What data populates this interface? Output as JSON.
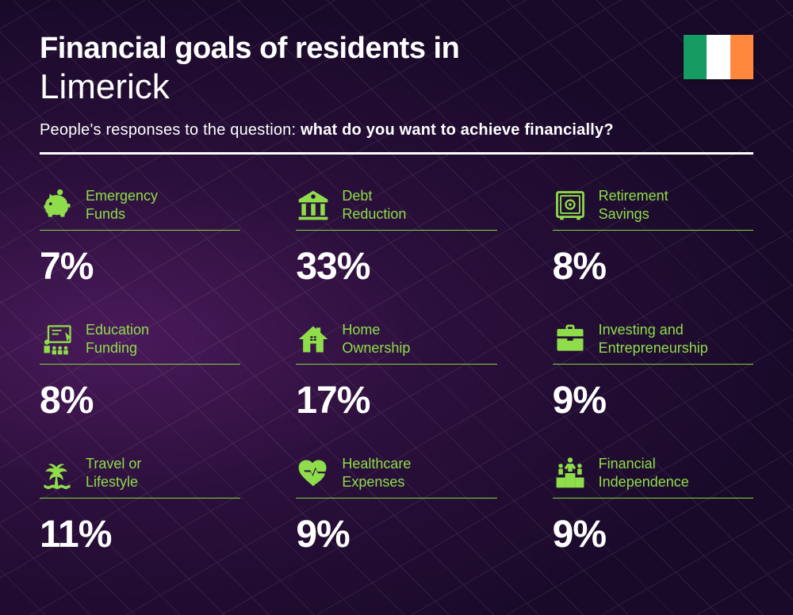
{
  "header": {
    "title_prefix": "Financial goals of residents in",
    "location": "Limerick",
    "subtitle_lead": "People's responses to the question: ",
    "subtitle_bold": "what do you want to achieve financially?"
  },
  "flag": {
    "stripes": [
      "#169b62",
      "#ffffff",
      "#ff883e"
    ]
  },
  "styling": {
    "accent_color": "#8fdd4a",
    "underline_color": "#7fd93b",
    "text_color": "#ffffff",
    "background_gradient": [
      "#4a1a5a",
      "#2a0f3a",
      "#1a0a2a"
    ],
    "title_bold_fontsize": 38,
    "title_light_fontsize": 44,
    "subtitle_fontsize": 20,
    "label_fontsize": 18,
    "value_fontsize": 48,
    "value_fontweight": 800,
    "grid_columns": 3,
    "column_gap": 70,
    "row_gap": 40
  },
  "cards": [
    {
      "icon": "piggy-bank",
      "label": "Emergency\nFunds",
      "value": "7%"
    },
    {
      "icon": "bank",
      "label": "Debt\nReduction",
      "value": "33%"
    },
    {
      "icon": "safe",
      "label": "Retirement\nSavings",
      "value": "8%"
    },
    {
      "icon": "education",
      "label": "Education\nFunding",
      "value": "8%"
    },
    {
      "icon": "house",
      "label": "Home\nOwnership",
      "value": "17%"
    },
    {
      "icon": "briefcase",
      "label": "Investing and\nEntrepreneurship",
      "value": "9%"
    },
    {
      "icon": "palm",
      "label": "Travel or\nLifestyle",
      "value": "11%"
    },
    {
      "icon": "heart",
      "label": "Healthcare\nExpenses",
      "value": "9%"
    },
    {
      "icon": "podium",
      "label": "Financial\nIndependence",
      "value": "9%"
    }
  ]
}
